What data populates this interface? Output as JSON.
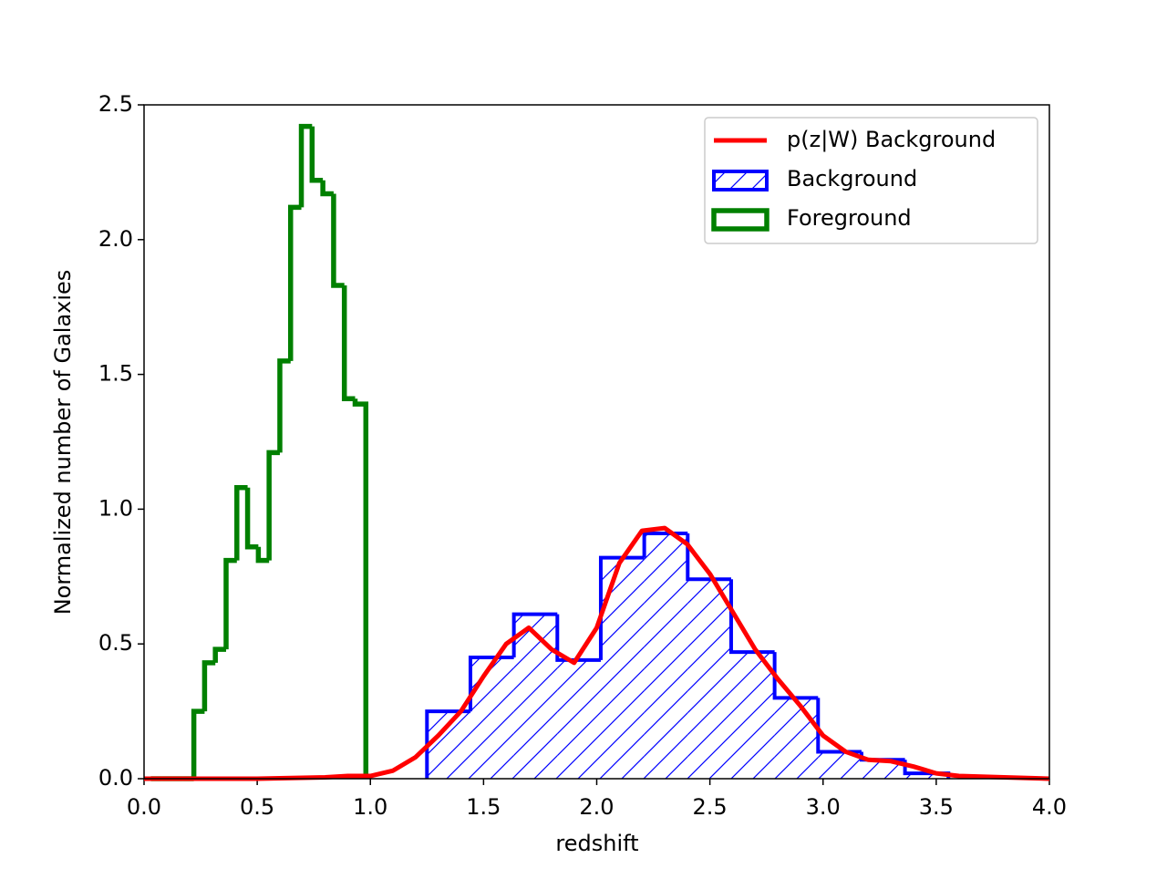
{
  "chart_data": {
    "type": "histogram",
    "x_label": "redshift",
    "y_label": "Normalized number of Galaxies",
    "xlim": [
      0,
      4
    ],
    "ylim": [
      0,
      2.5
    ],
    "xticks": [
      {
        "value": 0,
        "label": "0.0"
      },
      0.5,
      {
        "value": 1,
        "label": "1.0"
      },
      1.5,
      {
        "value": 2,
        "label": "2.0"
      },
      2.5,
      {
        "value": 3,
        "label": "3.0"
      },
      3.5,
      {
        "value": 4,
        "label": "4.0"
      }
    ],
    "yticks": [
      {
        "value": 0,
        "label": "0.0"
      },
      0.5,
      {
        "value": 1,
        "label": "1.0"
      },
      1.5,
      {
        "value": 2,
        "label": "2.0"
      },
      2.5
    ],
    "legend": "upper right",
    "series": [
      {
        "name": "p(z|W) Background",
        "type": "line",
        "color": "#ff0000",
        "x": [
          0,
          0.5,
          0.8,
          0.9,
          1.0,
          1.1,
          1.2,
          1.3,
          1.4,
          1.5,
          1.6,
          1.7,
          1.8,
          1.9,
          2.0,
          2.1,
          2.2,
          2.3,
          2.4,
          2.5,
          2.6,
          2.7,
          2.8,
          2.9,
          3.0,
          3.1,
          3.2,
          3.3,
          3.4,
          3.5,
          3.6,
          3.8,
          4.0
        ],
        "values": [
          0,
          0,
          0.005,
          0.01,
          0.01,
          0.03,
          0.08,
          0.16,
          0.25,
          0.38,
          0.5,
          0.56,
          0.48,
          0.43,
          0.56,
          0.8,
          0.92,
          0.93,
          0.87,
          0.76,
          0.62,
          0.48,
          0.37,
          0.27,
          0.16,
          0.1,
          0.07,
          0.065,
          0.045,
          0.02,
          0.01,
          0.005,
          0
        ]
      },
      {
        "name": "Background",
        "type": "hatched",
        "color": "#0000ff",
        "bins": [
          1.25,
          1.442,
          1.634,
          1.826,
          2.018,
          2.21,
          2.402,
          2.594,
          2.786,
          2.978,
          3.17,
          3.362,
          3.554
        ],
        "values": [
          0.25,
          0.45,
          0.61,
          0.44,
          0.82,
          0.91,
          0.74,
          0.47,
          0.3,
          0.1,
          0.07,
          0.02
        ]
      },
      {
        "name": "Foreground",
        "type": "step",
        "color": "#008000",
        "bins": [
          0.03,
          0.0775,
          0.125,
          0.1725,
          0.22,
          0.2675,
          0.315,
          0.3625,
          0.41,
          0.4575,
          0.505,
          0.5525,
          0.6,
          0.6475,
          0.695,
          0.7425,
          0.79,
          0.8375,
          0.885,
          0.9325,
          0.98
        ],
        "values": [
          0,
          0,
          0,
          0,
          0.25,
          0.43,
          0.48,
          0.81,
          1.08,
          0.86,
          0.81,
          1.21,
          1.55,
          2.12,
          2.42,
          2.22,
          2.17,
          1.83,
          1.41,
          1.39
        ]
      }
    ]
  }
}
